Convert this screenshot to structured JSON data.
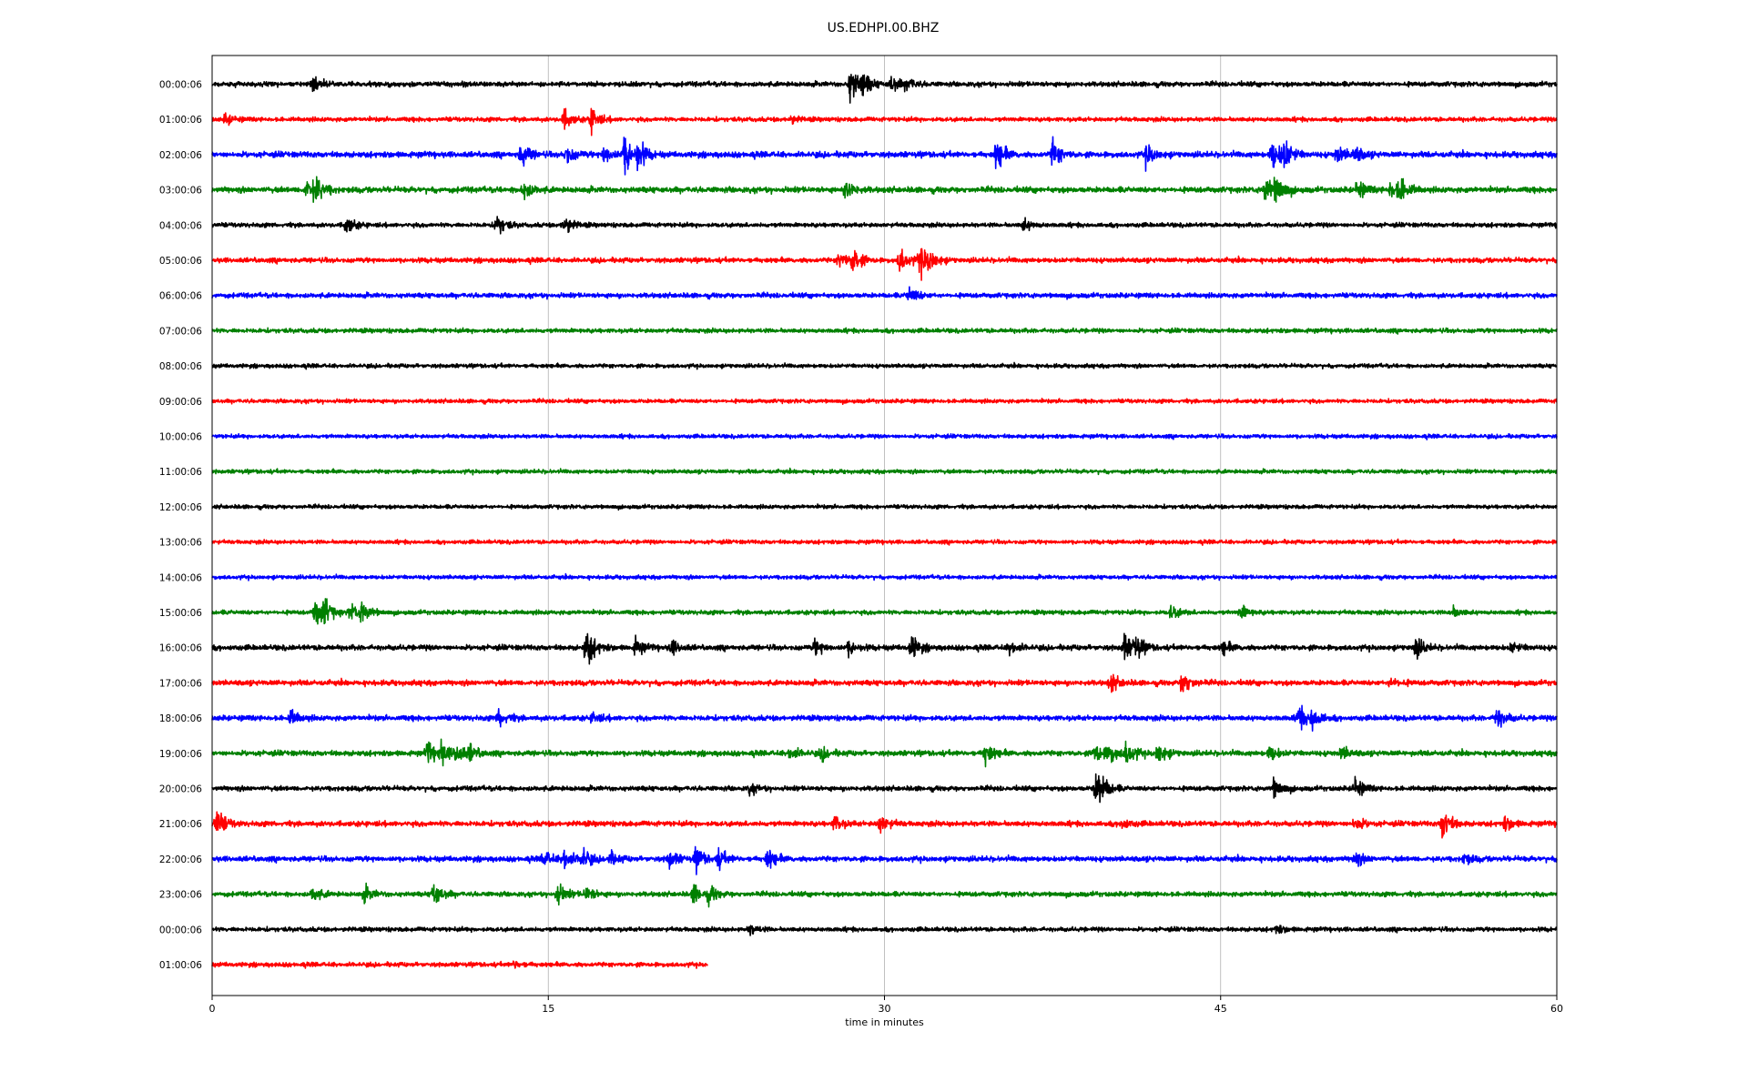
{
  "chart_data": {
    "type": "line",
    "title": "US.EDHPI.00.BHZ",
    "xlabel": "time in minutes",
    "ylabel": "",
    "xlim": [
      0,
      60
    ],
    "xticks": [
      0,
      15,
      30,
      45,
      60
    ],
    "grid": "vertical lines at x ticks",
    "trace_colors": [
      "#000000",
      "#ff0000",
      "#0000ff",
      "#008000"
    ],
    "rows": [
      {
        "label": "00:00:06",
        "end": 60,
        "level": 0.55,
        "events": [
          {
            "t": 4.5,
            "a": 0.6
          },
          {
            "t": 28.5,
            "a": 1.6
          },
          {
            "t": 29.0,
            "a": 0.9
          },
          {
            "t": 30.3,
            "a": 0.7
          },
          {
            "t": 31.0,
            "a": 0.5
          }
        ]
      },
      {
        "label": "01:00:06",
        "end": 60,
        "level": 0.5,
        "events": [
          {
            "t": 0.6,
            "a": 0.4
          },
          {
            "t": 15.7,
            "a": 0.8
          },
          {
            "t": 16.9,
            "a": 1.0
          },
          {
            "t": 25.8,
            "a": 0.3
          }
        ]
      },
      {
        "label": "02:00:06",
        "end": 60,
        "level": 0.65,
        "events": [
          {
            "t": 13.8,
            "a": 1.0
          },
          {
            "t": 15.8,
            "a": 0.8
          },
          {
            "t": 17.5,
            "a": 0.8
          },
          {
            "t": 18.4,
            "a": 1.6
          },
          {
            "t": 19.0,
            "a": 1.0
          },
          {
            "t": 35.0,
            "a": 1.2
          },
          {
            "t": 37.5,
            "a": 1.1
          },
          {
            "t": 41.7,
            "a": 0.9
          },
          {
            "t": 47.3,
            "a": 1.2
          },
          {
            "t": 47.8,
            "a": 1.4
          },
          {
            "t": 50.2,
            "a": 0.7
          },
          {
            "t": 51.0,
            "a": 0.6
          }
        ]
      },
      {
        "label": "03:00:06",
        "end": 60,
        "level": 0.65,
        "events": [
          {
            "t": 4.2,
            "a": 0.9
          },
          {
            "t": 4.6,
            "a": 1.1
          },
          {
            "t": 13.9,
            "a": 0.8
          },
          {
            "t": 28.3,
            "a": 0.8
          },
          {
            "t": 47.0,
            "a": 1.2
          },
          {
            "t": 47.5,
            "a": 1.0
          },
          {
            "t": 51.1,
            "a": 0.7
          },
          {
            "t": 52.6,
            "a": 0.8
          },
          {
            "t": 53.0,
            "a": 1.0
          }
        ]
      },
      {
        "label": "04:00:06",
        "end": 60,
        "level": 0.5,
        "events": [
          {
            "t": 6.0,
            "a": 0.7
          },
          {
            "t": 12.7,
            "a": 0.9
          },
          {
            "t": 15.7,
            "a": 0.8
          },
          {
            "t": 36.2,
            "a": 0.5
          }
        ]
      },
      {
        "label": "05:00:06",
        "end": 60,
        "level": 0.55,
        "events": [
          {
            "t": 28.0,
            "a": 0.7
          },
          {
            "t": 28.6,
            "a": 1.0
          },
          {
            "t": 30.7,
            "a": 1.0
          },
          {
            "t": 31.6,
            "a": 1.3
          },
          {
            "t": 32.0,
            "a": 0.6
          }
        ]
      },
      {
        "label": "06:00:06",
        "end": 60,
        "level": 0.55,
        "events": [
          {
            "t": 31.1,
            "a": 0.7
          }
        ]
      },
      {
        "label": "07:00:06",
        "end": 60,
        "level": 0.5,
        "events": []
      },
      {
        "label": "08:00:06",
        "end": 60,
        "level": 0.45,
        "events": []
      },
      {
        "label": "09:00:06",
        "end": 60,
        "level": 0.45,
        "events": []
      },
      {
        "label": "10:00:06",
        "end": 60,
        "level": 0.45,
        "events": []
      },
      {
        "label": "11:00:06",
        "end": 60,
        "level": 0.45,
        "events": []
      },
      {
        "label": "12:00:06",
        "end": 60,
        "level": 0.45,
        "events": []
      },
      {
        "label": "13:00:06",
        "end": 60,
        "level": 0.45,
        "events": []
      },
      {
        "label": "14:00:06",
        "end": 60,
        "level": 0.45,
        "events": []
      },
      {
        "label": "15:00:06",
        "end": 60,
        "level": 0.5,
        "events": [
          {
            "t": 4.6,
            "a": 1.3
          },
          {
            "t": 5.0,
            "a": 0.8
          },
          {
            "t": 6.2,
            "a": 0.7
          },
          {
            "t": 6.7,
            "a": 0.8
          },
          {
            "t": 42.8,
            "a": 0.6
          },
          {
            "t": 45.9,
            "a": 0.6
          },
          {
            "t": 55.3,
            "a": 0.5
          }
        ]
      },
      {
        "label": "16:00:06",
        "end": 60,
        "level": 0.6,
        "events": [
          {
            "t": 16.7,
            "a": 1.6
          },
          {
            "t": 18.9,
            "a": 0.6
          },
          {
            "t": 20.5,
            "a": 0.6
          },
          {
            "t": 26.9,
            "a": 0.6
          },
          {
            "t": 28.4,
            "a": 0.5
          },
          {
            "t": 31.2,
            "a": 0.9
          },
          {
            "t": 35.6,
            "a": 0.6
          },
          {
            "t": 40.7,
            "a": 1.0
          },
          {
            "t": 41.2,
            "a": 0.9
          },
          {
            "t": 45.1,
            "a": 0.5
          },
          {
            "t": 53.7,
            "a": 0.8
          },
          {
            "t": 58.0,
            "a": 0.4
          }
        ]
      },
      {
        "label": "17:00:06",
        "end": 60,
        "level": 0.6,
        "events": [
          {
            "t": 40.1,
            "a": 0.7
          },
          {
            "t": 43.3,
            "a": 1.0
          },
          {
            "t": 52.6,
            "a": 0.5
          }
        ]
      },
      {
        "label": "18:00:06",
        "end": 60,
        "level": 0.6,
        "events": [
          {
            "t": 3.5,
            "a": 0.6
          },
          {
            "t": 12.8,
            "a": 0.8
          },
          {
            "t": 17.0,
            "a": 0.4
          },
          {
            "t": 48.5,
            "a": 1.0
          },
          {
            "t": 49.1,
            "a": 0.8
          },
          {
            "t": 57.3,
            "a": 1.1
          }
        ]
      },
      {
        "label": "19:00:06",
        "end": 60,
        "level": 0.6,
        "events": [
          {
            "t": 9.6,
            "a": 0.9
          },
          {
            "t": 10.2,
            "a": 0.9
          },
          {
            "t": 10.9,
            "a": 0.8
          },
          {
            "t": 11.5,
            "a": 0.6
          },
          {
            "t": 25.8,
            "a": 0.6
          },
          {
            "t": 27.2,
            "a": 0.5
          },
          {
            "t": 34.5,
            "a": 0.9
          },
          {
            "t": 39.4,
            "a": 0.9
          },
          {
            "t": 40.0,
            "a": 0.8
          },
          {
            "t": 40.8,
            "a": 1.0
          },
          {
            "t": 42.2,
            "a": 0.9
          },
          {
            "t": 47.2,
            "a": 0.6
          },
          {
            "t": 50.4,
            "a": 0.5
          }
        ]
      },
      {
        "label": "20:00:06",
        "end": 60,
        "level": 0.55,
        "events": [
          {
            "t": 24.0,
            "a": 0.4
          },
          {
            "t": 39.4,
            "a": 0.9
          },
          {
            "t": 39.6,
            "a": 1.0
          },
          {
            "t": 47.4,
            "a": 0.8
          },
          {
            "t": 51.0,
            "a": 0.8
          }
        ]
      },
      {
        "label": "21:00:06",
        "end": 60,
        "level": 0.6,
        "events": [
          {
            "t": 0.2,
            "a": 1.2
          },
          {
            "t": 27.8,
            "a": 0.6
          },
          {
            "t": 29.8,
            "a": 0.8
          },
          {
            "t": 40.6,
            "a": 0.4
          },
          {
            "t": 51.0,
            "a": 0.6
          },
          {
            "t": 54.9,
            "a": 1.2
          },
          {
            "t": 57.7,
            "a": 0.5
          }
        ]
      },
      {
        "label": "22:00:06",
        "end": 60,
        "level": 0.6,
        "events": [
          {
            "t": 14.8,
            "a": 0.6
          },
          {
            "t": 15.7,
            "a": 1.0
          },
          {
            "t": 16.5,
            "a": 0.8
          },
          {
            "t": 17.7,
            "a": 0.6
          },
          {
            "t": 20.4,
            "a": 0.7
          },
          {
            "t": 21.6,
            "a": 0.9
          },
          {
            "t": 22.6,
            "a": 0.7
          },
          {
            "t": 24.8,
            "a": 0.8
          },
          {
            "t": 51.0,
            "a": 0.6
          },
          {
            "t": 55.9,
            "a": 0.4
          }
        ]
      },
      {
        "label": "23:00:06",
        "end": 60,
        "level": 0.55,
        "events": [
          {
            "t": 4.5,
            "a": 0.6
          },
          {
            "t": 6.8,
            "a": 0.6
          },
          {
            "t": 9.9,
            "a": 1.0
          },
          {
            "t": 15.4,
            "a": 1.0
          },
          {
            "t": 16.7,
            "a": 0.6
          },
          {
            "t": 21.5,
            "a": 0.8
          },
          {
            "t": 22.2,
            "a": 0.6
          }
        ]
      },
      {
        "label": "00:00:06",
        "end": 60,
        "level": 0.5,
        "events": [
          {
            "t": 24.0,
            "a": 0.4
          },
          {
            "t": 47.5,
            "a": 0.3
          }
        ]
      },
      {
        "label": "01:00:06",
        "end": 22.1,
        "level": 0.5,
        "events": [
          {
            "t": 13.5,
            "a": 0.3
          }
        ]
      }
    ]
  }
}
